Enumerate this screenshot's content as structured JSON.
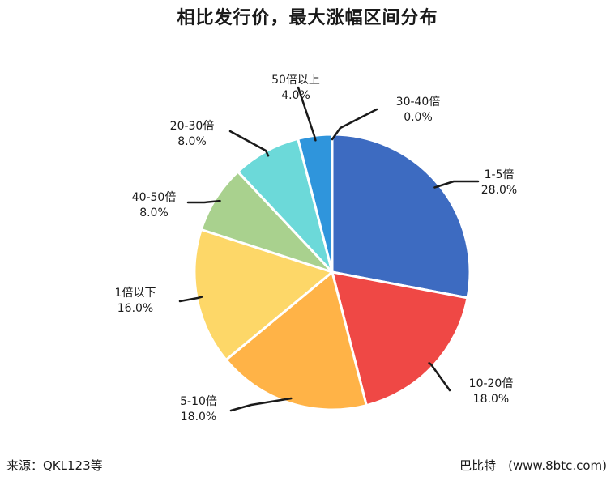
{
  "chart_data": {
    "type": "pie",
    "title": "相比发行价，最大涨幅区间分布",
    "categories": [
      "1-5倍",
      "10-20倍",
      "5-10倍",
      "1倍以下",
      "40-50倍",
      "20-30倍",
      "50倍以上",
      "30-40倍"
    ],
    "values": [
      28.0,
      18.0,
      18.0,
      16.0,
      8.0,
      8.0,
      4.0,
      0.0
    ],
    "value_labels": [
      "28.0%",
      "18.0%",
      "18.0%",
      "16.0%",
      "8.0%",
      "8.0%",
      "4.0%",
      "0.0%"
    ],
    "colors": [
      "#3d6bc1",
      "#ef4845",
      "#ffb347",
      "#fdd768",
      "#a9d18e",
      "#6cd9d9",
      "#2f95dc",
      "#999999"
    ],
    "start_angle_deg": 0,
    "direction": "clockwise",
    "legend": "none"
  },
  "footer": {
    "source": "来源：QKL123等",
    "credit": "巴比特　(www.8btc.com)"
  }
}
